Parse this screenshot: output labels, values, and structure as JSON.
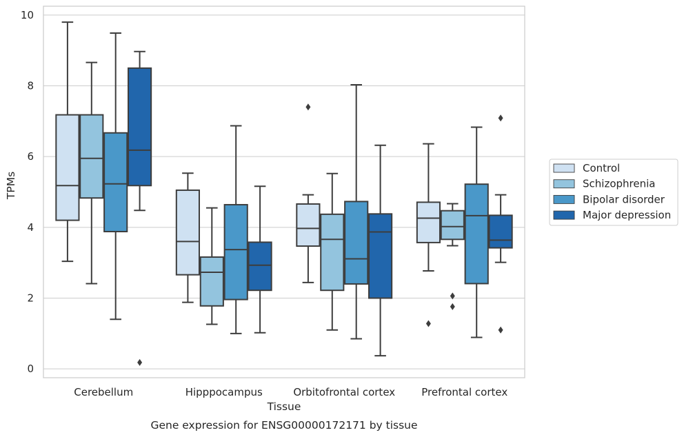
{
  "chart_data": {
    "type": "box",
    "xlabel": "Tissue",
    "ylabel": "TPMs",
    "caption": "Gene expression for ENSG00000172171 by tissue",
    "ylim": [
      -0.25,
      10.25
    ],
    "yticks": [
      0,
      2,
      4,
      6,
      8,
      10
    ],
    "grid": "horizontal",
    "legend_position": "right",
    "categories": [
      "Cerebellum",
      "Hipppocampus",
      "Orbitofrontal cortex",
      "Prefrontal cortex"
    ],
    "series": [
      {
        "name": "Control",
        "color": "#cfe1f2",
        "boxes": [
          {
            "q1": 4.2,
            "median": 5.18,
            "q3": 7.18,
            "whisker_low": 3.04,
            "whisker_high": 9.8,
            "outliers": []
          },
          {
            "q1": 2.66,
            "median": 3.6,
            "q3": 5.05,
            "whisker_low": 1.88,
            "whisker_high": 5.53,
            "outliers": []
          },
          {
            "q1": 3.47,
            "median": 3.97,
            "q3": 4.66,
            "whisker_low": 2.44,
            "whisker_high": 4.92,
            "outliers": [
              7.4
            ]
          },
          {
            "q1": 3.57,
            "median": 4.26,
            "q3": 4.71,
            "whisker_low": 2.77,
            "whisker_high": 6.36,
            "outliers": [
              1.28
            ]
          }
        ]
      },
      {
        "name": "Schizophrenia",
        "color": "#93c4de",
        "boxes": [
          {
            "q1": 4.83,
            "median": 5.95,
            "q3": 7.18,
            "whisker_low": 2.41,
            "whisker_high": 8.66,
            "outliers": []
          },
          {
            "q1": 1.78,
            "median": 2.73,
            "q3": 3.16,
            "whisker_low": 1.26,
            "whisker_high": 4.55,
            "outliers": []
          },
          {
            "q1": 2.22,
            "median": 3.66,
            "q3": 4.37,
            "whisker_low": 1.1,
            "whisker_high": 5.52,
            "outliers": []
          },
          {
            "q1": 3.66,
            "median": 4.02,
            "q3": 4.47,
            "whisker_low": 3.48,
            "whisker_high": 4.67,
            "outliers": [
              2.06,
              1.76
            ]
          }
        ]
      },
      {
        "name": "Bipolar disorder",
        "color": "#4a98c9",
        "boxes": [
          {
            "q1": 3.88,
            "median": 5.23,
            "q3": 6.67,
            "whisker_low": 1.4,
            "whisker_high": 9.49,
            "outliers": []
          },
          {
            "q1": 1.96,
            "median": 3.37,
            "q3": 4.64,
            "whisker_low": 1.0,
            "whisker_high": 6.87,
            "outliers": []
          },
          {
            "q1": 2.4,
            "median": 3.11,
            "q3": 4.73,
            "whisker_low": 0.85,
            "whisker_high": 8.03,
            "outliers": []
          },
          {
            "q1": 2.41,
            "median": 4.33,
            "q3": 5.22,
            "whisker_low": 0.89,
            "whisker_high": 6.83,
            "outliers": []
          }
        ]
      },
      {
        "name": "Major depression",
        "color": "#2166ac",
        "boxes": [
          {
            "q1": 5.18,
            "median": 6.18,
            "q3": 8.5,
            "whisker_low": 4.48,
            "whisker_high": 8.97,
            "outliers": [
              0.18
            ]
          },
          {
            "q1": 2.22,
            "median": 2.93,
            "q3": 3.58,
            "whisker_low": 1.02,
            "whisker_high": 5.16,
            "outliers": []
          },
          {
            "q1": 2.0,
            "median": 3.87,
            "q3": 4.38,
            "whisker_low": 0.37,
            "whisker_high": 6.32,
            "outliers": []
          },
          {
            "q1": 3.42,
            "median": 3.64,
            "q3": 4.34,
            "whisker_low": 3.01,
            "whisker_high": 4.92,
            "outliers": [
              7.09,
              1.1
            ]
          }
        ]
      }
    ]
  }
}
